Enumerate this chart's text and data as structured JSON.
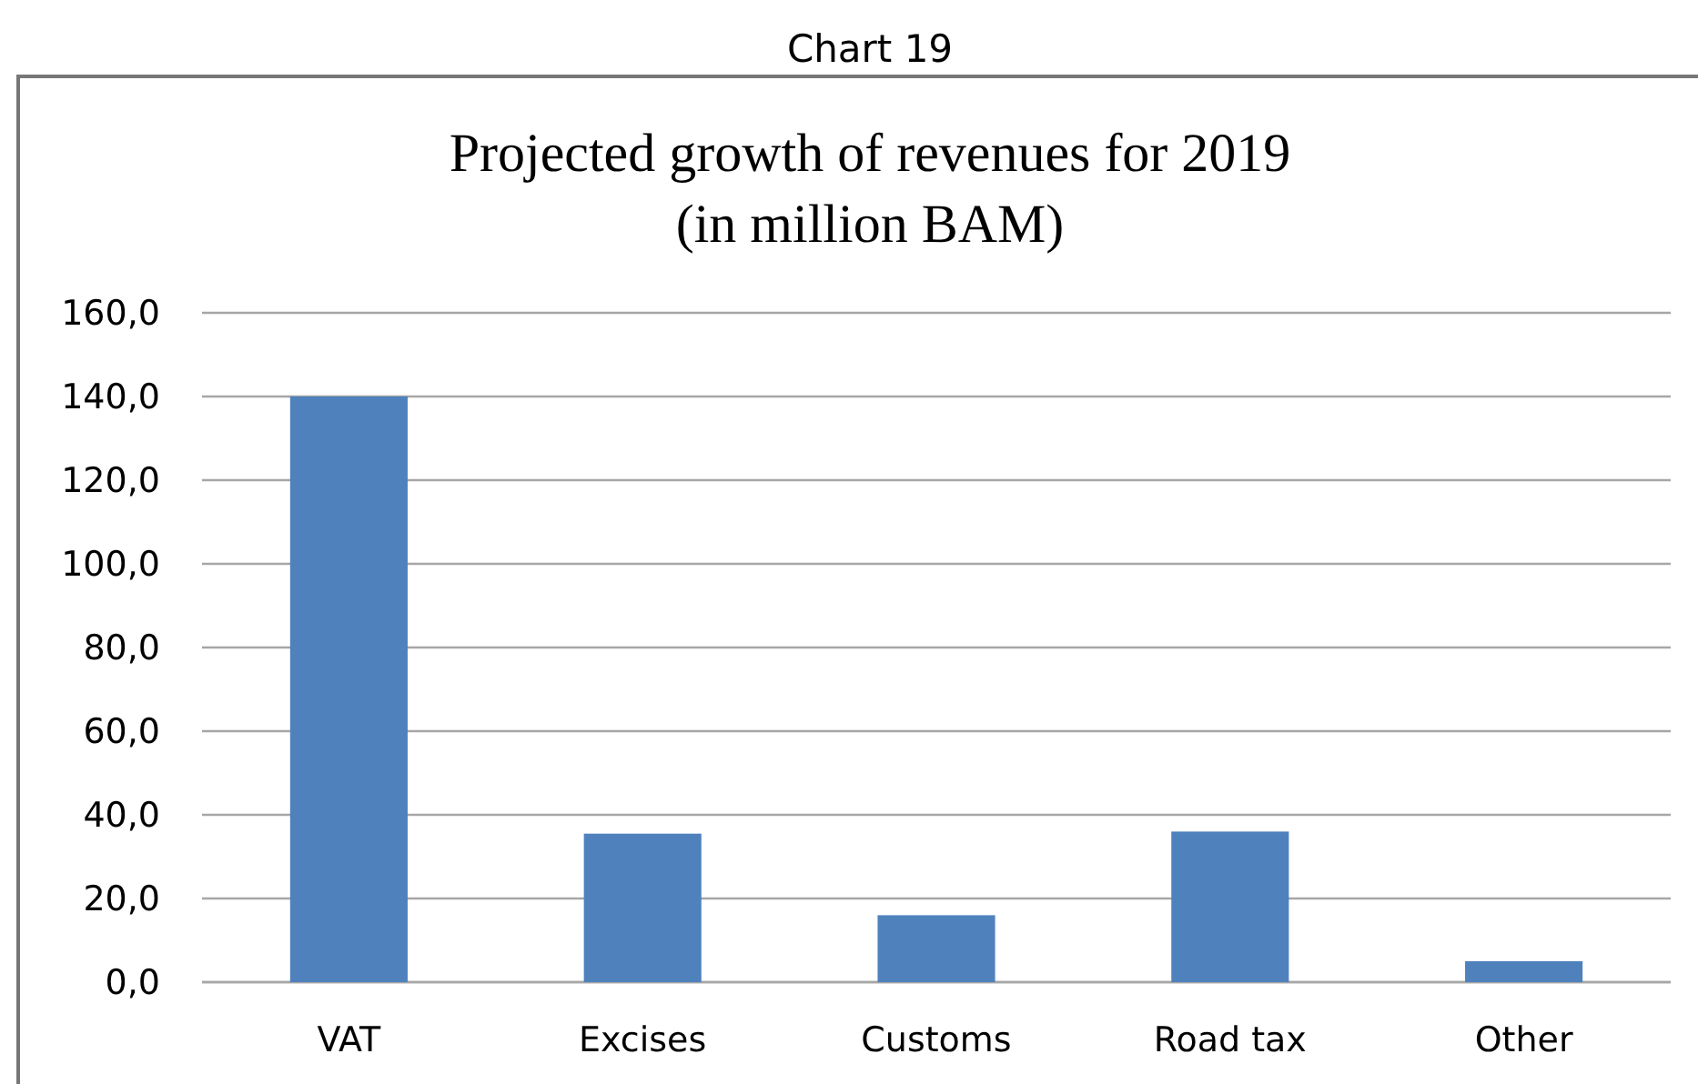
{
  "chart_data": {
    "type": "bar",
    "title": "Projected growth of revenues for 2019\n(in million BAM)",
    "annotations": [
      "Chart 19"
    ],
    "categories": [
      "VAT",
      "Excises",
      "Customs",
      "Road tax",
      "Other"
    ],
    "values": [
      140,
      35.5,
      16,
      36,
      5
    ],
    "color": "#4f81bd",
    "ylim": [
      0,
      160
    ],
    "yticks": [
      {
        "value": 0,
        "label": "0,0"
      },
      {
        "value": 20,
        "label": "20,0"
      },
      {
        "value": 40,
        "label": "40,0"
      },
      {
        "value": 60,
        "label": "60,0"
      },
      {
        "value": 80,
        "label": "80,0"
      },
      {
        "value": 100,
        "label": "100,0"
      },
      {
        "value": 120,
        "label": "120,0"
      },
      {
        "value": 140,
        "label": "140,0"
      },
      {
        "value": 160,
        "label": "160,0"
      }
    ],
    "grid": "y"
  }
}
